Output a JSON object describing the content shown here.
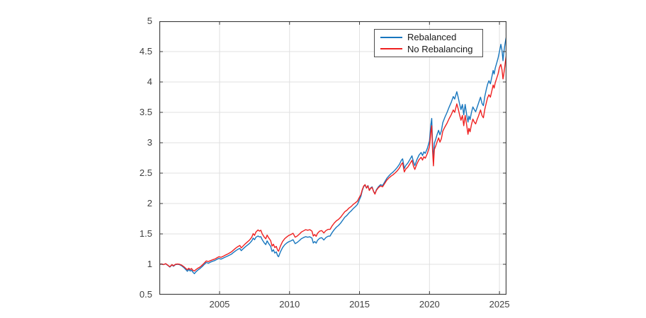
{
  "figure": {
    "background": "#ffffff",
    "axis_color": "#3a3a3a",
    "grid_color": "#e0e0e0",
    "tick_label_color": "#404040"
  },
  "chart_data": {
    "type": "line",
    "title": "",
    "xlabel": "",
    "ylabel": "",
    "grid": true,
    "xlim": [
      2000.7,
      2025.5
    ],
    "ylim": [
      0.5,
      5
    ],
    "x_ticks": [
      2005,
      2010,
      2015,
      2020,
      2025
    ],
    "y_ticks": [
      0.5,
      1,
      1.5,
      2,
      2.5,
      3,
      3.5,
      4,
      4.5,
      5
    ],
    "legend": {
      "position": "top-right",
      "entries": [
        {
          "label": "Rebalanced",
          "color": "#1776be"
        },
        {
          "label": "No Rebalancing",
          "color": "#ef2020"
        }
      ]
    },
    "x": [
      2000.7,
      2000.85,
      2001,
      2001.15,
      2001.3,
      2001.45,
      2001.6,
      2001.7,
      2001.85,
      2002,
      2002.15,
      2002.3,
      2002.45,
      2002.6,
      2002.7,
      2002.8,
      2002.9,
      2003,
      2003.1,
      2003.2,
      2003.3,
      2003.45,
      2003.6,
      2003.75,
      2003.9,
      2004.05,
      2004.2,
      2004.35,
      2004.5,
      2004.65,
      2004.8,
      2004.95,
      2005.1,
      2005.25,
      2005.4,
      2005.55,
      2005.7,
      2005.85,
      2006,
      2006.15,
      2006.3,
      2006.45,
      2006.55,
      2006.7,
      2006.85,
      2007,
      2007.15,
      2007.3,
      2007.4,
      2007.5,
      2007.6,
      2007.75,
      2007.85,
      2007.95,
      2008.05,
      2008.2,
      2008.3,
      2008.4,
      2008.5,
      2008.65,
      2008.75,
      2008.85,
      2008.95,
      2009.05,
      2009.15,
      2009.22,
      2009.35,
      2009.5,
      2009.65,
      2009.8,
      2009.95,
      2010.1,
      2010.25,
      2010.4,
      2010.55,
      2010.7,
      2010.85,
      2011,
      2011.15,
      2011.3,
      2011.45,
      2011.6,
      2011.7,
      2011.8,
      2011.9,
      2012,
      2012.15,
      2012.3,
      2012.45,
      2012.6,
      2012.75,
      2012.9,
      2013.05,
      2013.2,
      2013.35,
      2013.5,
      2013.65,
      2013.8,
      2013.95,
      2014.1,
      2014.25,
      2014.4,
      2014.55,
      2014.7,
      2014.85,
      2015,
      2015.1,
      2015.2,
      2015.3,
      2015.4,
      2015.5,
      2015.6,
      2015.7,
      2015.8,
      2015.9,
      2016,
      2016.1,
      2016.2,
      2016.35,
      2016.5,
      2016.65,
      2016.8,
      2016.95,
      2017.1,
      2017.25,
      2017.4,
      2017.55,
      2017.7,
      2017.85,
      2018,
      2018.08,
      2018.2,
      2018.3,
      2018.45,
      2018.6,
      2018.75,
      2018.85,
      2018.95,
      2019.1,
      2019.25,
      2019.4,
      2019.5,
      2019.6,
      2019.7,
      2019.85,
      2020,
      2020.1,
      2020.16,
      2020.22,
      2020.28,
      2020.35,
      2020.45,
      2020.55,
      2020.65,
      2020.75,
      2020.85,
      2020.95,
      2021.1,
      2021.25,
      2021.4,
      2021.55,
      2021.7,
      2021.8,
      2021.95,
      2022.05,
      2022.15,
      2022.25,
      2022.35,
      2022.45,
      2022.55,
      2022.65,
      2022.75,
      2022.82,
      2022.9,
      2023,
      2023.1,
      2023.2,
      2023.3,
      2023.4,
      2023.5,
      2023.65,
      2023.75,
      2023.85,
      2023.95,
      2024.05,
      2024.15,
      2024.25,
      2024.35,
      2024.45,
      2024.55,
      2024.62,
      2024.7,
      2024.8,
      2024.9,
      2025,
      2025.1,
      2025.18,
      2025.25,
      2025.3,
      2025.38,
      2025.45,
      2025.5
    ],
    "series": [
      {
        "name": "Rebalanced",
        "color": "#1776be",
        "values": [
          1.0,
          1.005,
          0.995,
          1.008,
          0.982,
          0.955,
          0.99,
          0.968,
          0.995,
          1.0,
          0.993,
          0.975,
          0.945,
          0.91,
          0.885,
          0.915,
          0.89,
          0.905,
          0.87,
          0.845,
          0.875,
          0.905,
          0.93,
          0.96,
          0.995,
          1.03,
          1.018,
          1.035,
          1.05,
          1.06,
          1.08,
          1.098,
          1.085,
          1.1,
          1.118,
          1.132,
          1.15,
          1.168,
          1.195,
          1.222,
          1.245,
          1.262,
          1.225,
          1.258,
          1.29,
          1.318,
          1.345,
          1.385,
          1.43,
          1.405,
          1.445,
          1.465,
          1.45,
          1.455,
          1.405,
          1.35,
          1.325,
          1.385,
          1.345,
          1.295,
          1.21,
          1.24,
          1.185,
          1.205,
          1.14,
          1.125,
          1.205,
          1.275,
          1.32,
          1.35,
          1.372,
          1.385,
          1.405,
          1.34,
          1.36,
          1.39,
          1.422,
          1.44,
          1.455,
          1.445,
          1.452,
          1.43,
          1.35,
          1.375,
          1.348,
          1.395,
          1.428,
          1.438,
          1.4,
          1.44,
          1.462,
          1.465,
          1.525,
          1.572,
          1.61,
          1.64,
          1.678,
          1.725,
          1.775,
          1.805,
          1.845,
          1.878,
          1.915,
          1.948,
          1.985,
          2.065,
          2.12,
          2.215,
          2.28,
          2.305,
          2.255,
          2.295,
          2.22,
          2.258,
          2.275,
          2.205,
          2.16,
          2.225,
          2.275,
          2.31,
          2.295,
          2.355,
          2.415,
          2.455,
          2.49,
          2.52,
          2.555,
          2.595,
          2.645,
          2.715,
          2.735,
          2.575,
          2.625,
          2.665,
          2.725,
          2.785,
          2.69,
          2.625,
          2.72,
          2.795,
          2.84,
          2.79,
          2.85,
          2.825,
          2.91,
          3.03,
          3.3,
          3.4,
          2.98,
          2.7,
          2.99,
          3.06,
          3.14,
          3.205,
          3.13,
          3.195,
          3.33,
          3.42,
          3.495,
          3.585,
          3.665,
          3.76,
          3.72,
          3.84,
          3.75,
          3.64,
          3.545,
          3.63,
          3.46,
          3.63,
          3.47,
          3.34,
          3.44,
          3.38,
          3.5,
          3.59,
          3.545,
          3.51,
          3.58,
          3.65,
          3.75,
          3.65,
          3.61,
          3.76,
          3.87,
          3.96,
          4.02,
          3.97,
          4.08,
          4.19,
          4.13,
          4.23,
          4.31,
          4.39,
          4.5,
          4.62,
          4.52,
          4.35,
          4.46,
          4.6,
          4.7,
          4.75
        ]
      },
      {
        "name": "No Rebalancing",
        "color": "#ef2020",
        "values": [
          1.0,
          1.005,
          0.995,
          1.01,
          0.985,
          0.96,
          0.995,
          0.975,
          1.0,
          1.005,
          1.0,
          0.985,
          0.96,
          0.93,
          0.91,
          0.935,
          0.915,
          0.93,
          0.9,
          0.89,
          0.91,
          0.935,
          0.955,
          0.985,
          1.02,
          1.055,
          1.045,
          1.06,
          1.075,
          1.085,
          1.105,
          1.125,
          1.115,
          1.13,
          1.15,
          1.165,
          1.185,
          1.205,
          1.235,
          1.265,
          1.29,
          1.31,
          1.27,
          1.305,
          1.34,
          1.37,
          1.4,
          1.445,
          1.505,
          1.475,
          1.53,
          1.565,
          1.545,
          1.56,
          1.5,
          1.445,
          1.42,
          1.48,
          1.44,
          1.39,
          1.3,
          1.33,
          1.275,
          1.295,
          1.23,
          1.215,
          1.3,
          1.375,
          1.42,
          1.45,
          1.475,
          1.49,
          1.51,
          1.445,
          1.465,
          1.495,
          1.53,
          1.55,
          1.57,
          1.56,
          1.57,
          1.545,
          1.465,
          1.49,
          1.46,
          1.51,
          1.545,
          1.555,
          1.515,
          1.555,
          1.575,
          1.575,
          1.635,
          1.68,
          1.715,
          1.74,
          1.775,
          1.82,
          1.865,
          1.89,
          1.925,
          1.95,
          1.985,
          2.01,
          2.04,
          2.105,
          2.145,
          2.23,
          2.29,
          2.31,
          2.255,
          2.29,
          2.215,
          2.25,
          2.265,
          2.2,
          2.155,
          2.215,
          2.26,
          2.29,
          2.275,
          2.33,
          2.385,
          2.42,
          2.45,
          2.475,
          2.505,
          2.54,
          2.585,
          2.65,
          2.67,
          2.52,
          2.565,
          2.6,
          2.655,
          2.71,
          2.62,
          2.56,
          2.65,
          2.72,
          2.76,
          2.715,
          2.77,
          2.745,
          2.825,
          2.935,
          3.18,
          3.28,
          2.87,
          2.62,
          2.89,
          2.95,
          3.02,
          3.08,
          3.01,
          3.065,
          3.19,
          3.26,
          3.32,
          3.395,
          3.46,
          3.54,
          3.5,
          3.64,
          3.56,
          3.46,
          3.37,
          3.45,
          3.28,
          3.45,
          3.3,
          3.14,
          3.24,
          3.18,
          3.3,
          3.39,
          3.34,
          3.31,
          3.38,
          3.44,
          3.54,
          3.45,
          3.41,
          3.55,
          3.65,
          3.74,
          3.79,
          3.75,
          3.85,
          3.95,
          3.9,
          3.99,
          4.06,
          4.13,
          4.24,
          4.29,
          4.2,
          4.05,
          4.11,
          4.25,
          4.38,
          4.45
        ]
      }
    ]
  }
}
